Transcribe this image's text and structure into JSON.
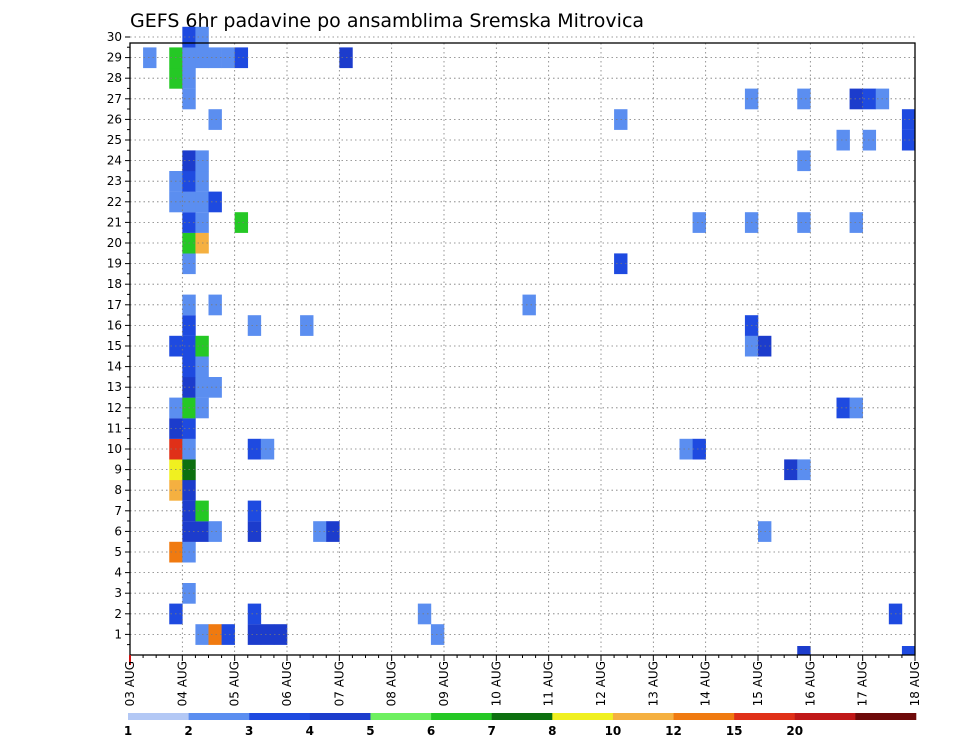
{
  "chart_data": {
    "type": "heatmap",
    "title": "GEFS 6hr padavine po ansamblima Sremska Mitrovica",
    "xlabel": "",
    "ylabel": "",
    "x_tick_labels": [
      "03 AUG",
      "04 AUG",
      "05 AUG",
      "06 AUG",
      "07 AUG",
      "08 AUG",
      "09 AUG",
      "10 AUG",
      "11 AUG",
      "12 AUG",
      "13 AUG",
      "14 AUG",
      "15 AUG",
      "16 AUG",
      "17 AUG",
      "18 AUG"
    ],
    "xlim_days": [
      0,
      15
    ],
    "steps_per_day": 4,
    "ylim": [
      0,
      30
    ],
    "y_ticks": [
      1,
      2,
      3,
      4,
      5,
      6,
      7,
      8,
      9,
      10,
      11,
      12,
      13,
      14,
      15,
      16,
      17,
      18,
      19,
      20,
      21,
      22,
      23,
      24,
      25,
      26,
      27,
      28,
      29,
      30
    ],
    "grid": true,
    "colorbar": {
      "placement": "bottom",
      "labels": [
        "1",
        "2",
        "3",
        "4",
        "5",
        "6",
        "7",
        "8",
        "10",
        "12",
        "15",
        "20"
      ],
      "colors": [
        "#b3c8f5",
        "#5b8ef0",
        "#1e4ae0",
        "#1c3ccc",
        "#6ef060",
        "#25c825",
        "#0d7010",
        "#f0f020",
        "#f5b040",
        "#f07a10",
        "#e03018",
        "#c01818",
        "#6e0a0a"
      ]
    },
    "member_cells": [
      {
        "member": 1,
        "cells": [
          [
            5,
            1
          ],
          [
            6,
            9
          ],
          [
            7,
            2
          ],
          [
            9,
            3
          ],
          [
            10,
            3
          ],
          [
            11,
            3
          ],
          [
            23,
            1
          ]
        ]
      },
      {
        "member": 2,
        "cells": [
          [
            3,
            2
          ],
          [
            9,
            2
          ],
          [
            22,
            1
          ],
          [
            58,
            2
          ]
        ]
      },
      {
        "member": 3,
        "cells": [
          [
            4,
            1
          ]
        ]
      },
      {
        "member": 5,
        "cells": [
          [
            3,
            9
          ],
          [
            4,
            1
          ]
        ]
      },
      {
        "member": 6,
        "cells": [
          [
            4,
            3
          ],
          [
            5,
            3
          ],
          [
            6,
            1
          ],
          [
            9,
            3
          ],
          [
            14,
            1
          ],
          [
            15,
            3
          ],
          [
            48,
            1
          ]
        ]
      },
      {
        "member": 7,
        "cells": [
          [
            4,
            3
          ],
          [
            5,
            5
          ],
          [
            9,
            2
          ]
        ]
      },
      {
        "member": 8,
        "cells": [
          [
            3,
            8
          ],
          [
            4,
            3
          ]
        ]
      },
      {
        "member": 9,
        "cells": [
          [
            3,
            7
          ],
          [
            4,
            6
          ],
          [
            50,
            3
          ],
          [
            51,
            1
          ]
        ]
      },
      {
        "member": 10,
        "cells": [
          [
            3,
            10
          ],
          [
            4,
            1
          ],
          [
            9,
            2
          ],
          [
            10,
            1
          ],
          [
            42,
            1
          ],
          [
            43,
            2
          ]
        ]
      },
      {
        "member": 11,
        "cells": [
          [
            3,
            3
          ],
          [
            4,
            2
          ]
        ]
      },
      {
        "member": 12,
        "cells": [
          [
            3,
            1
          ],
          [
            4,
            5
          ],
          [
            5,
            1
          ],
          [
            54,
            2
          ],
          [
            55,
            1
          ]
        ]
      },
      {
        "member": 13,
        "cells": [
          [
            4,
            3
          ],
          [
            5,
            1
          ],
          [
            6,
            1
          ]
        ]
      },
      {
        "member": 14,
        "cells": [
          [
            4,
            2
          ],
          [
            5,
            1
          ]
        ]
      },
      {
        "member": 15,
        "cells": [
          [
            3,
            2
          ],
          [
            4,
            2
          ],
          [
            5,
            5
          ],
          [
            47,
            1
          ],
          [
            48,
            3
          ]
        ]
      },
      {
        "member": 16,
        "cells": [
          [
            4,
            2
          ],
          [
            9,
            1
          ],
          [
            13,
            1
          ],
          [
            47,
            2
          ]
        ]
      },
      {
        "member": 17,
        "cells": [
          [
            4,
            1
          ],
          [
            6,
            1
          ],
          [
            30,
            1
          ]
        ]
      },
      {
        "member": 19,
        "cells": [
          [
            4,
            1
          ],
          [
            37,
            2
          ]
        ]
      },
      {
        "member": 20,
        "cells": [
          [
            4,
            5
          ],
          [
            5,
            8
          ]
        ]
      },
      {
        "member": 21,
        "cells": [
          [
            4,
            2
          ],
          [
            5,
            1
          ],
          [
            8,
            5
          ],
          [
            43,
            1
          ],
          [
            47,
            1
          ],
          [
            51,
            1
          ],
          [
            55,
            1
          ]
        ]
      },
      {
        "member": 22,
        "cells": [
          [
            3,
            1
          ],
          [
            4,
            1
          ],
          [
            5,
            1
          ],
          [
            6,
            2
          ]
        ]
      },
      {
        "member": 23,
        "cells": [
          [
            3,
            1
          ],
          [
            4,
            2
          ],
          [
            5,
            1
          ]
        ]
      },
      {
        "member": 24,
        "cells": [
          [
            4,
            3
          ],
          [
            5,
            1
          ],
          [
            51,
            1
          ]
        ]
      },
      {
        "member": 25,
        "cells": [
          [
            54,
            1
          ],
          [
            56,
            1
          ],
          [
            59,
            2
          ]
        ]
      },
      {
        "member": 26,
        "cells": [
          [
            6,
            1
          ],
          [
            37,
            1
          ],
          [
            59,
            2
          ]
        ]
      },
      {
        "member": 27,
        "cells": [
          [
            4,
            1
          ],
          [
            47,
            1
          ],
          [
            51,
            1
          ],
          [
            55,
            3
          ],
          [
            56,
            2
          ],
          [
            57,
            1
          ]
        ]
      },
      {
        "member": 28,
        "cells": [
          [
            3,
            5
          ],
          [
            4,
            1
          ]
        ]
      },
      {
        "member": 29,
        "cells": [
          [
            1,
            1
          ],
          [
            3,
            5
          ],
          [
            4,
            1
          ],
          [
            5,
            1
          ],
          [
            6,
            1
          ],
          [
            7,
            1
          ],
          [
            8,
            2
          ],
          [
            16,
            3
          ]
        ]
      },
      {
        "member": 30,
        "cells": [
          [
            4,
            2
          ],
          [
            5,
            1
          ]
        ]
      }
    ],
    "bottom_strip_cells": [
      [
        51,
        3
      ],
      [
        59,
        2
      ]
    ]
  }
}
